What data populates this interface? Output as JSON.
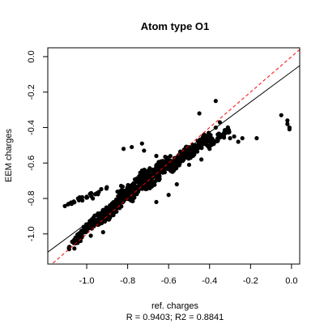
{
  "chart_data": {
    "type": "scatter",
    "title": "Atom type O1",
    "xlabel": "ref. charges",
    "ylabel": "EEM charges",
    "stats": "R = 0.9403; R2 = 0.8841",
    "xlim": [
      -1.19,
      0.04
    ],
    "ylim": [
      -1.17,
      0.05
    ],
    "x_ticks": [
      -1.0,
      -0.8,
      -0.6,
      -0.4,
      -0.2,
      0.0
    ],
    "x_tick_labels": [
      "-1.0",
      "-0.8",
      "-0.6",
      "-0.4",
      "-0.2",
      "0.0"
    ],
    "y_ticks": [
      -1.0,
      -0.8,
      -0.6,
      -0.4,
      -0.2,
      0.0
    ],
    "y_tick_labels": [
      "-1.0",
      "-0.8",
      "-0.6",
      "-0.4",
      "-0.2",
      "0.0"
    ],
    "fit_line": {
      "intercept": -0.085,
      "slope": 0.855
    },
    "identity_line": {
      "intercept": 0,
      "slope": 1
    },
    "colors": {
      "points": "#000000",
      "fit": "#000000",
      "identity": "#ff0000"
    },
    "series": [
      {
        "clusters": [
          {
            "x": [
              -1.08,
              -1.0
            ],
            "y": [
              -1.08,
              -0.96
            ],
            "w": 0.03,
            "n": 45
          },
          {
            "x": [
              -1.0,
              -0.9
            ],
            "y": [
              -0.98,
              -0.86
            ],
            "w": 0.04,
            "n": 70
          },
          {
            "x": [
              -0.9,
              -0.8
            ],
            "y": [
              -0.9,
              -0.74
            ],
            "w": 0.05,
            "n": 90
          },
          {
            "x": [
              -0.8,
              -0.7
            ],
            "y": [
              -0.8,
              -0.64
            ],
            "w": 0.05,
            "n": 120
          },
          {
            "x": [
              -0.7,
              -0.6
            ],
            "y": [
              -0.72,
              -0.58
            ],
            "w": 0.05,
            "n": 120
          },
          {
            "x": [
              -0.6,
              -0.5
            ],
            "y": [
              -0.64,
              -0.52
            ],
            "w": 0.04,
            "n": 100
          },
          {
            "x": [
              -0.5,
              -0.4
            ],
            "y": [
              -0.56,
              -0.44
            ],
            "w": 0.04,
            "n": 80
          },
          {
            "x": [
              -0.4,
              -0.3
            ],
            "y": [
              -0.5,
              -0.4
            ],
            "w": 0.03,
            "n": 45
          },
          {
            "x": [
              -0.73,
              -0.7
            ],
            "y": [
              -0.74,
              -0.72
            ],
            "w": 0.03,
            "n": 40
          },
          {
            "x": [
              -1.1,
              -0.9
            ],
            "y": [
              -0.84,
              -0.74
            ],
            "w": 0.02,
            "n": 25
          },
          {
            "x": [
              -0.95,
              -0.88
            ],
            "y": [
              -0.94,
              -0.9
            ],
            "w": 0.02,
            "n": 20
          }
        ],
        "points": [
          [
            -1.0,
            -0.79
          ],
          [
            -0.95,
            -0.77
          ],
          [
            -0.97,
            -0.8
          ],
          [
            -0.82,
            -0.52
          ],
          [
            -0.78,
            -0.51
          ],
          [
            -0.73,
            -0.49
          ],
          [
            -0.72,
            -0.53
          ],
          [
            -0.66,
            -0.56
          ],
          [
            -0.5,
            -0.61
          ],
          [
            -0.56,
            -0.72
          ],
          [
            -0.6,
            -0.78
          ],
          [
            -0.66,
            -0.82
          ],
          [
            -0.44,
            -0.58
          ],
          [
            -0.4,
            -0.52
          ],
          [
            -0.37,
            -0.4
          ],
          [
            -0.35,
            -0.37
          ],
          [
            -0.33,
            -0.45
          ],
          [
            -0.3,
            -0.46
          ],
          [
            -0.28,
            -0.45
          ],
          [
            -0.26,
            -0.48
          ],
          [
            -0.24,
            -0.46
          ],
          [
            -0.45,
            -0.32
          ],
          [
            -0.37,
            -0.25
          ],
          [
            -0.17,
            -0.46
          ],
          [
            -0.05,
            -0.33
          ],
          [
            -0.02,
            -0.38
          ],
          [
            -0.01,
            -0.4
          ],
          [
            -0.01,
            -0.41
          ],
          [
            -0.02,
            -0.36
          ],
          [
            -1.03,
            -1.04
          ],
          [
            -0.98,
            -1.01
          ],
          [
            -1.06,
            -1.05
          ],
          [
            -0.92,
            -0.99
          ],
          [
            -0.88,
            -0.86
          ],
          [
            -0.86,
            -0.82
          ],
          [
            -0.93,
            -0.93
          ]
        ]
      }
    ]
  }
}
